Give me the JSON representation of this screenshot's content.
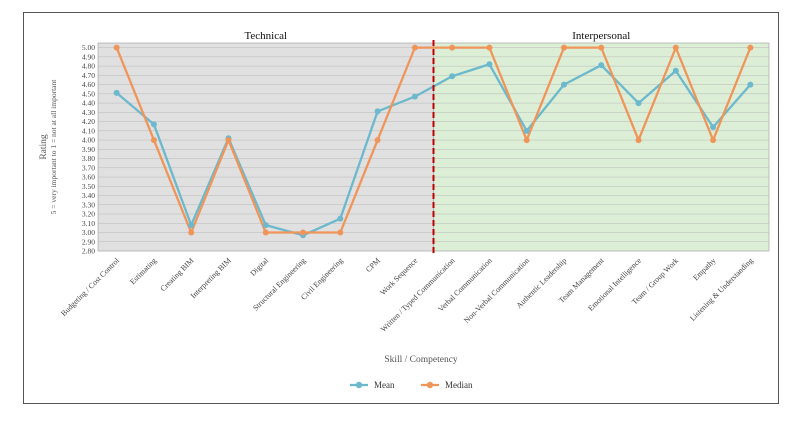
{
  "chart_data": {
    "type": "line",
    "xlabel": "Skill / Competency",
    "ylabel": "Rating",
    "ylabel_sub": "5 = very important to 1 = not at all important",
    "ylim": [
      2.8,
      5.05
    ],
    "y_ticks": [
      "2.80",
      "2.90",
      "3.00",
      "3.10",
      "3.20",
      "3.30",
      "3.40",
      "3.50",
      "3.60",
      "3.70",
      "3.80",
      "3.90",
      "4.00",
      "4.10",
      "4.20",
      "4.30",
      "4.40",
      "4.50",
      "4.60",
      "4.70",
      "4.80",
      "4.90",
      "5.00"
    ],
    "grid": true,
    "legend_position": "bottom",
    "regions": [
      {
        "label": "Technical",
        "color": "#e0e0e0",
        "from": 0,
        "to": 8
      },
      {
        "label": "Interpersonal",
        "color": "#dcefd6",
        "from": 9,
        "to": 17
      }
    ],
    "divider_color": "#c00000",
    "categories": [
      "Budgeting / Cost Control",
      "Estimating",
      "Creating BIM",
      "Interpreting BIM",
      "Digital",
      "Structural Engineering",
      "Civil Engineering",
      "CPM",
      "Work Sequence",
      "Written / Typed Communication",
      "Verbal Communication",
      "Non-Verbal Communication",
      "Authentic Leadership",
      "Team Management",
      "Emotional Intelligence",
      "Team / Group Work",
      "Empathy",
      "Listening & Understanding"
    ],
    "series": [
      {
        "name": "Mean",
        "color": "#6cb8cc",
        "values": [
          4.51,
          4.17,
          3.08,
          4.02,
          3.08,
          2.97,
          3.15,
          4.31,
          4.47,
          4.69,
          4.82,
          4.1,
          4.6,
          4.81,
          4.4,
          4.75,
          4.14,
          4.6
        ]
      },
      {
        "name": "Median",
        "color": "#f0955a",
        "values": [
          5.0,
          4.0,
          3.0,
          4.0,
          3.0,
          3.0,
          3.0,
          4.0,
          5.0,
          5.0,
          5.0,
          4.0,
          5.0,
          5.0,
          4.0,
          5.0,
          4.0,
          5.0
        ]
      }
    ]
  }
}
